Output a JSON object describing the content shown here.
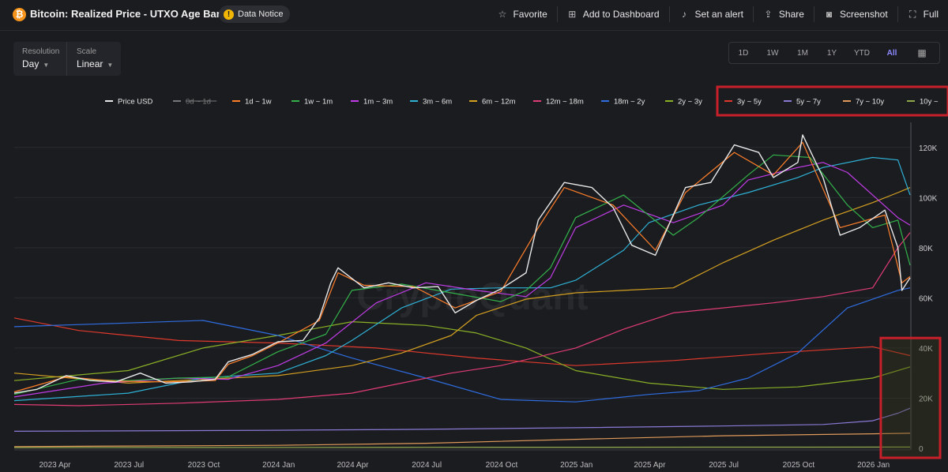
{
  "header": {
    "title": "Bitcoin: Realized Price - UTXO Age Bands",
    "notice_label": "Data Notice",
    "actions": [
      {
        "label": "Favorite",
        "icon": "star-icon"
      },
      {
        "label": "Add to Dashboard",
        "icon": "dashboard-add-icon"
      },
      {
        "label": "Set an alert",
        "icon": "bell-icon"
      },
      {
        "label": "Share",
        "icon": "share-icon"
      },
      {
        "label": "Screenshot",
        "icon": "camera-icon"
      },
      {
        "label": "Full",
        "icon": "fullscreen-icon"
      }
    ]
  },
  "controls": {
    "resolution_label": "Resolution",
    "resolution_value": "Day",
    "scale_label": "Scale",
    "scale_value": "Linear",
    "ranges": [
      "1D",
      "1W",
      "1M",
      "1Y",
      "YTD",
      "All"
    ],
    "active_range": "All"
  },
  "colors": {
    "background": "#1b1c20",
    "highlight_box": "#c8202a",
    "active_range": "#8c89ff"
  },
  "watermark": "CryptoQuant",
  "chart_data": {
    "type": "line",
    "title": "",
    "xlabel": "",
    "ylabel": "",
    "ylim": [
      0,
      130000
    ],
    "yticks": [
      0,
      20000,
      40000,
      60000,
      80000,
      100000,
      120000
    ],
    "ytick_labels": [
      "0",
      "20K",
      "40K",
      "60K",
      "80K",
      "100K",
      "120K"
    ],
    "xlim": [
      "2023-02-10",
      "2026-02-15"
    ],
    "xticks": [
      "2023-04-01",
      "2023-07-01",
      "2023-10-01",
      "2024-01-01",
      "2024-04-01",
      "2024-07-01",
      "2024-10-01",
      "2025-01-01",
      "2025-04-01",
      "2025-07-01",
      "2025-10-01",
      "2026-01-01"
    ],
    "xtick_labels": [
      "2023 Apr",
      "2023 Jul",
      "2023 Oct",
      "2024 Jan",
      "2024 Apr",
      "2024 Jul",
      "2024 Oct",
      "2025 Jan",
      "2025 Apr",
      "2025 Jul",
      "2025 Oct",
      "2026 Jan"
    ],
    "grid": true,
    "legend_position": "top",
    "highlighted_legend": [
      "3y ~ 5y",
      "5y ~ 7y",
      "7y ~ 10y",
      "10y ~"
    ],
    "highlighted_region": {
      "x_from": "2026-01-10",
      "x_to": "2026-02-15",
      "y_from": 0,
      "y_to": 44000
    },
    "series": [
      {
        "name": "Price USD",
        "color": "#e8e8e8",
        "hidden": false,
        "x": [
          "2023-02-10",
          "2023-03-10",
          "2023-04-15",
          "2023-05-15",
          "2023-06-15",
          "2023-07-15",
          "2023-08-15",
          "2023-09-15",
          "2023-10-15",
          "2023-10-31",
          "2023-11-30",
          "2023-12-31",
          "2024-01-31",
          "2024-02-20",
          "2024-03-05",
          "2024-03-14",
          "2024-04-15",
          "2024-05-15",
          "2024-06-15",
          "2024-07-15",
          "2024-08-05",
          "2024-08-31",
          "2024-09-30",
          "2024-10-31",
          "2024-11-15",
          "2024-12-17",
          "2025-01-20",
          "2025-02-15",
          "2025-03-10",
          "2025-04-08",
          "2025-05-15",
          "2025-06-15",
          "2025-07-14",
          "2025-08-13",
          "2025-08-31",
          "2025-09-30",
          "2025-10-06",
          "2025-10-31",
          "2025-11-21",
          "2025-12-15",
          "2026-01-15",
          "2026-01-31",
          "2026-02-05",
          "2026-02-15"
        ],
        "y": [
          22000,
          23500,
          29000,
          27000,
          26500,
          30000,
          26000,
          26500,
          27500,
          34500,
          37500,
          42500,
          43000,
          52000,
          66000,
          72000,
          64000,
          66000,
          64000,
          64500,
          54000,
          59000,
          63500,
          70000,
          91000,
          106000,
          104000,
          96000,
          81000,
          77000,
          104000,
          106000,
          121000,
          118000,
          108000,
          114000,
          125000,
          108000,
          85000,
          88000,
          95000,
          80000,
          63000,
          68000
        ]
      },
      {
        "name": "0d ~ 1d",
        "color": "#777777",
        "hidden": true,
        "x": [],
        "y": []
      },
      {
        "name": "1d ~ 1w",
        "color": "#ff7f2a",
        "hidden": false,
        "x": [
          "2023-02-10",
          "2023-04-15",
          "2023-06-15",
          "2023-08-15",
          "2023-10-15",
          "2023-10-31",
          "2023-11-30",
          "2023-12-31",
          "2024-02-20",
          "2024-03-14",
          "2024-04-15",
          "2024-06-15",
          "2024-08-05",
          "2024-09-30",
          "2024-11-15",
          "2024-12-17",
          "2025-02-15",
          "2025-04-08",
          "2025-05-15",
          "2025-07-14",
          "2025-08-31",
          "2025-10-06",
          "2025-11-21",
          "2026-01-15",
          "2026-02-05",
          "2026-02-15"
        ],
        "y": [
          22500,
          28500,
          26800,
          26500,
          27000,
          33500,
          37000,
          42000,
          51000,
          70000,
          65000,
          64500,
          56000,
          62500,
          88000,
          104000,
          97000,
          79000,
          102000,
          118000,
          109000,
          122000,
          88000,
          93000,
          66000,
          68500
        ]
      },
      {
        "name": "1w ~ 1m",
        "color": "#33b24a",
        "hidden": false,
        "x": [
          "2023-02-10",
          "2023-04-30",
          "2023-06-30",
          "2023-08-31",
          "2023-10-31",
          "2023-12-31",
          "2024-02-28",
          "2024-03-31",
          "2024-05-31",
          "2024-07-31",
          "2024-09-30",
          "2024-10-31",
          "2024-11-30",
          "2024-12-31",
          "2025-02-28",
          "2025-04-30",
          "2025-05-31",
          "2025-07-31",
          "2025-08-31",
          "2025-10-15",
          "2025-11-30",
          "2025-12-31",
          "2026-01-31",
          "2026-02-15"
        ],
        "y": [
          21500,
          27500,
          27000,
          28000,
          28500,
          38500,
          45500,
          63000,
          65500,
          62000,
          58500,
          63000,
          72000,
          92000,
          101000,
          85000,
          92000,
          109000,
          117000,
          116000,
          97000,
          88000,
          91000,
          73000
        ]
      },
      {
        "name": "1w ~ 1m",
        "color": "#33b24a",
        "hidden": false,
        "x": [],
        "y": []
      },
      {
        "name": "1m ~ 3m",
        "color": "#c03ce6",
        "hidden": false,
        "x": [
          "2023-02-10",
          "2023-05-31",
          "2023-08-31",
          "2023-10-31",
          "2023-12-31",
          "2024-02-28",
          "2024-04-30",
          "2024-06-30",
          "2024-08-31",
          "2024-10-31",
          "2024-11-30",
          "2024-12-31",
          "2025-02-28",
          "2025-04-30",
          "2025-06-30",
          "2025-07-31",
          "2025-09-30",
          "2025-10-31",
          "2025-11-30",
          "2025-12-31",
          "2026-01-31",
          "2026-02-15"
        ],
        "y": [
          20500,
          26000,
          28000,
          27500,
          33000,
          42000,
          58000,
          66000,
          63000,
          60500,
          68000,
          88000,
          97000,
          90000,
          97000,
          107000,
          112000,
          114000,
          110000,
          101000,
          92000,
          89000
        ]
      },
      {
        "name": "3m ~ 6m",
        "color": "#2fb1d6",
        "hidden": false,
        "x": [
          "2023-02-10",
          "2023-06-30",
          "2023-09-30",
          "2023-12-31",
          "2024-02-28",
          "2024-03-31",
          "2024-05-31",
          "2024-07-31",
          "2024-09-30",
          "2024-11-30",
          "2024-12-31",
          "2025-02-28",
          "2025-03-31",
          "2025-05-31",
          "2025-07-31",
          "2025-09-30",
          "2025-10-31",
          "2025-12-31",
          "2026-01-31",
          "2026-02-15"
        ],
        "y": [
          19000,
          22000,
          28000,
          30000,
          37000,
          43000,
          56000,
          63500,
          64000,
          64000,
          67000,
          79000,
          90000,
          97000,
          102000,
          108000,
          112000,
          116000,
          115000,
          101000
        ]
      },
      {
        "name": "6m ~ 12m",
        "color": "#d4a020",
        "hidden": false,
        "x": [
          "2023-02-10",
          "2023-06-30",
          "2023-09-30",
          "2023-12-31",
          "2024-03-31",
          "2024-05-31",
          "2024-07-31",
          "2024-08-31",
          "2024-10-31",
          "2024-12-31",
          "2025-02-28",
          "2025-04-30",
          "2025-06-30",
          "2025-08-31",
          "2025-10-31",
          "2025-12-31",
          "2026-01-31",
          "2026-02-15"
        ],
        "y": [
          30000,
          26000,
          27500,
          29000,
          33000,
          38000,
          45000,
          53000,
          59500,
          62000,
          63000,
          64000,
          74000,
          83000,
          91000,
          98000,
          102000,
          104000
        ]
      },
      {
        "name": "12m ~ 18m",
        "color": "#e13c74",
        "hidden": false,
        "x": [
          "2023-02-10",
          "2023-04-30",
          "2023-08-31",
          "2023-12-31",
          "2024-03-31",
          "2024-05-31",
          "2024-07-31",
          "2024-09-30",
          "2024-12-31",
          "2025-02-28",
          "2025-04-30",
          "2025-06-30",
          "2025-08-31",
          "2025-10-31",
          "2025-12-31",
          "2026-01-31",
          "2026-02-15"
        ],
        "y": [
          17500,
          17000,
          18000,
          19500,
          22000,
          26000,
          30000,
          33000,
          40000,
          47500,
          54000,
          56000,
          58000,
          60500,
          64000,
          80000,
          86000
        ]
      },
      {
        "name": "18m ~ 2y",
        "color": "#2f6de0",
        "hidden": false,
        "x": [
          "2023-02-10",
          "2023-06-30",
          "2023-09-30",
          "2023-12-31",
          "2024-03-31",
          "2024-06-30",
          "2024-09-30",
          "2024-12-31",
          "2025-03-31",
          "2025-05-31",
          "2025-07-31",
          "2025-09-30",
          "2025-11-30",
          "2026-01-31",
          "2026-02-15"
        ],
        "y": [
          48500,
          50000,
          51000,
          45000,
          36000,
          28000,
          19500,
          18500,
          21500,
          23000,
          28000,
          38000,
          56000,
          63000,
          64000
        ]
      },
      {
        "name": "2y ~ 3y",
        "color": "#8ab026",
        "hidden": false,
        "x": [
          "2023-02-10",
          "2023-06-30",
          "2023-09-30",
          "2023-12-31",
          "2024-03-31",
          "2024-06-30",
          "2024-08-31",
          "2024-10-31",
          "2024-12-31",
          "2025-03-31",
          "2025-06-30",
          "2025-09-30",
          "2025-12-31",
          "2026-02-15"
        ],
        "y": [
          27000,
          31000,
          40000,
          45000,
          50500,
          49000,
          46000,
          40000,
          31000,
          26000,
          23500,
          24500,
          28000,
          32500
        ]
      },
      {
        "name": "3y ~ 5y",
        "color": "#e0392c",
        "hidden": false,
        "x": [
          "2023-02-10",
          "2023-04-30",
          "2023-08-31",
          "2023-12-31",
          "2024-04-30",
          "2024-08-31",
          "2024-12-31",
          "2025-04-30",
          "2025-08-31",
          "2025-12-31",
          "2026-02-15"
        ],
        "y": [
          52000,
          47000,
          43000,
          42000,
          40000,
          36000,
          33000,
          35000,
          38000,
          40500,
          37000
        ]
      },
      {
        "name": "5y ~ 7y",
        "color": "#8a7ad6",
        "hidden": false,
        "x": [
          "2023-02-10",
          "2023-12-31",
          "2024-06-30",
          "2024-12-31",
          "2025-06-30",
          "2025-10-31",
          "2025-12-31",
          "2026-01-31",
          "2026-02-15"
        ],
        "y": [
          6800,
          7200,
          7600,
          8200,
          8900,
          9500,
          11000,
          14000,
          16000
        ]
      },
      {
        "name": "7y ~ 10y",
        "color": "#e09a5a",
        "hidden": false,
        "x": [
          "2023-02-10",
          "2023-12-31",
          "2024-06-30",
          "2024-12-31",
          "2025-06-30",
          "2025-12-31",
          "2026-02-15"
        ],
        "y": [
          700,
          1200,
          2000,
          3600,
          5000,
          5800,
          6000
        ]
      },
      {
        "name": "10y ~",
        "color": "#8fa84a",
        "hidden": false,
        "x": [
          "2023-02-10",
          "2024-06-30",
          "2026-02-15"
        ],
        "y": [
          300,
          400,
          500
        ]
      }
    ]
  }
}
